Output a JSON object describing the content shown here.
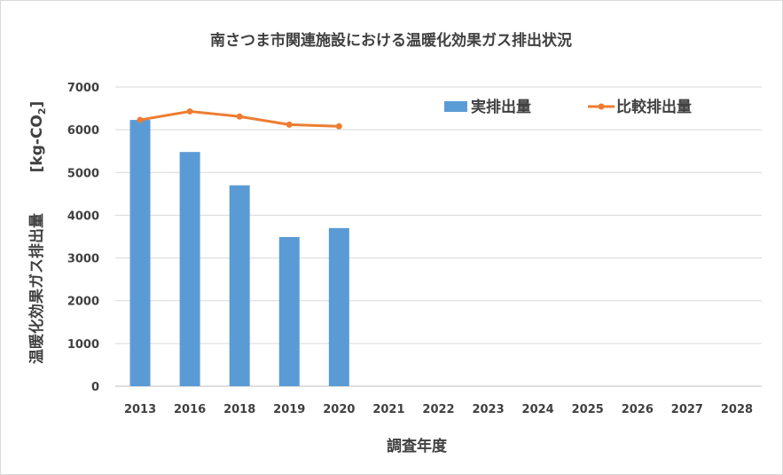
{
  "chart_data": {
    "type": "bar",
    "title": "南さつま市関連施設における温暖化効果ガス排出状況",
    "xlabel": "調査年度",
    "ylabel": "温暖化効果ガス排出量",
    "ylabel_unit_prefix": "[kg-CO",
    "ylabel_unit_sub": "2",
    "ylabel_unit_suffix": "]",
    "categories": [
      "2013",
      "2016",
      "2018",
      "2019",
      "2020",
      "2021",
      "2022",
      "2023",
      "2024",
      "2025",
      "2026",
      "2027",
      "2028"
    ],
    "series": [
      {
        "name": "実排出量",
        "type": "bar",
        "color": "#5b9bd5",
        "values": [
          6230,
          5480,
          4700,
          3490,
          3700,
          null,
          null,
          null,
          null,
          null,
          null,
          null,
          null
        ]
      },
      {
        "name": "比較排出量",
        "type": "line",
        "color": "#ed7d31",
        "values": [
          6230,
          6430,
          6310,
          6120,
          6080,
          null,
          null,
          null,
          null,
          null,
          null,
          null,
          null
        ]
      }
    ],
    "ylim": [
      0,
      7000
    ],
    "yticks": [
      0,
      1000,
      2000,
      3000,
      4000,
      5000,
      6000,
      7000
    ],
    "grid": true,
    "legend_position": "top-right"
  }
}
